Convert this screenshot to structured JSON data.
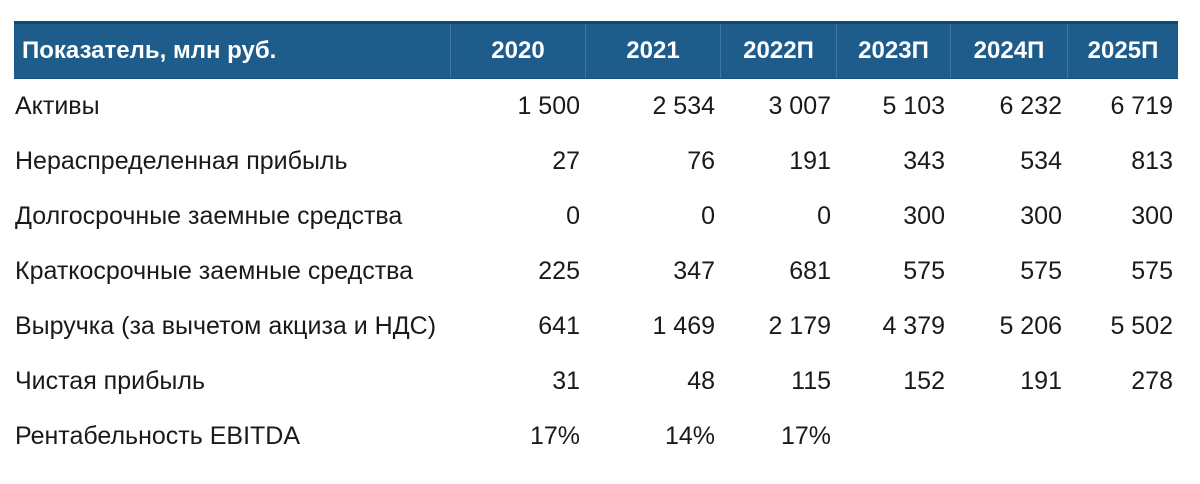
{
  "colors": {
    "header_bg": "#1E5C8C",
    "header_top_border": "#14486F",
    "header_separator": "#3E76A1",
    "header_text": "#FFFFFF",
    "body_text": "#1A1A1A",
    "page_bg": "#FFFFFF"
  },
  "table": {
    "header": {
      "indicator_label": "Показатель, млн руб.",
      "years": [
        "2020",
        "2021",
        "2022П",
        "2023П",
        "2024П",
        "2025П"
      ]
    },
    "rows": [
      {
        "label": "Активы",
        "values": [
          "1 500",
          "2 534",
          "3 007",
          "5 103",
          "6 232",
          "6 719"
        ]
      },
      {
        "label": "Нераспределенная прибыль",
        "values": [
          "27",
          "76",
          "191",
          "343",
          "534",
          "813"
        ]
      },
      {
        "label": "Долгосрочные заемные средства",
        "values": [
          "0",
          "0",
          "0",
          "300",
          "300",
          "300"
        ]
      },
      {
        "label": "Краткосрочные заемные средства",
        "values": [
          "225",
          "347",
          "681",
          "575",
          "575",
          "575"
        ]
      },
      {
        "label": "Выручка (за вычетом акциза и НДС)",
        "values": [
          "641",
          "1 469",
          "2 179",
          "4 379",
          "5 206",
          "5 502"
        ]
      },
      {
        "label": "Чистая прибыль",
        "values": [
          "31",
          "48",
          "115",
          "152",
          "191",
          "278"
        ]
      },
      {
        "label": "Рентабельность EBITDA",
        "values": [
          "17%",
          "14%",
          "17%",
          "",
          "",
          ""
        ]
      }
    ]
  },
  "chart_data": {
    "type": "table",
    "title": "Показатель, млн руб.",
    "columns": [
      "Показатель, млн руб.",
      "2020",
      "2021",
      "2022П",
      "2023П",
      "2024П",
      "2025П"
    ],
    "rows": [
      {
        "indicator": "Активы",
        "values": [
          1500,
          2534,
          3007,
          5103,
          6232,
          6719
        ]
      },
      {
        "indicator": "Нераспределенная прибыль",
        "values": [
          27,
          76,
          191,
          343,
          534,
          813
        ]
      },
      {
        "indicator": "Долгосрочные заемные средства",
        "values": [
          0,
          0,
          0,
          300,
          300,
          300
        ]
      },
      {
        "indicator": "Краткосрочные заемные средства",
        "values": [
          225,
          347,
          681,
          575,
          575,
          575
        ]
      },
      {
        "indicator": "Выручка (за вычетом акциза и НДС)",
        "values": [
          641,
          1469,
          2179,
          4379,
          5206,
          5502
        ]
      },
      {
        "indicator": "Чистая прибыль",
        "values": [
          31,
          48,
          115,
          152,
          191,
          278
        ]
      },
      {
        "indicator": "Рентабельность EBITDA",
        "values": [
          "17%",
          "14%",
          "17%",
          null,
          null,
          null
        ]
      }
    ],
    "layout": {
      "header_alignment": "center",
      "value_alignment": "right",
      "grid": "header-column-separators-only",
      "units": "млн руб."
    }
  }
}
